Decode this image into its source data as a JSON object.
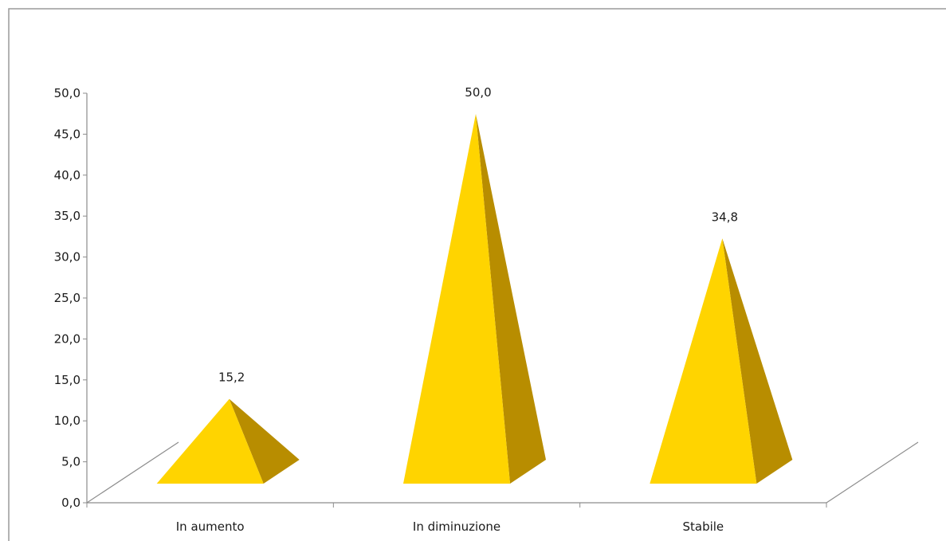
{
  "chart_data": {
    "type": "bar",
    "shape": "3d-pyramid",
    "categories": [
      "In aumento",
      "In diminuzione",
      "Stabile"
    ],
    "values": [
      15.2,
      50.0,
      34.8
    ],
    "data_labels": [
      "15,2",
      "50,0",
      "34,8"
    ],
    "y_ticks": [
      "0,0",
      "5,0",
      "10,0",
      "15,0",
      "20,0",
      "25,0",
      "30,0",
      "35,0",
      "40,0",
      "45,0",
      "50,0"
    ],
    "ylim": [
      0,
      50
    ],
    "title": "",
    "xlabel": "",
    "ylabel": "",
    "grid": false,
    "legend": "none",
    "colors": {
      "front": "#ffd400",
      "side": "#b88d00",
      "axis": "#8c8c8c",
      "border": "#9a9a9a"
    }
  }
}
